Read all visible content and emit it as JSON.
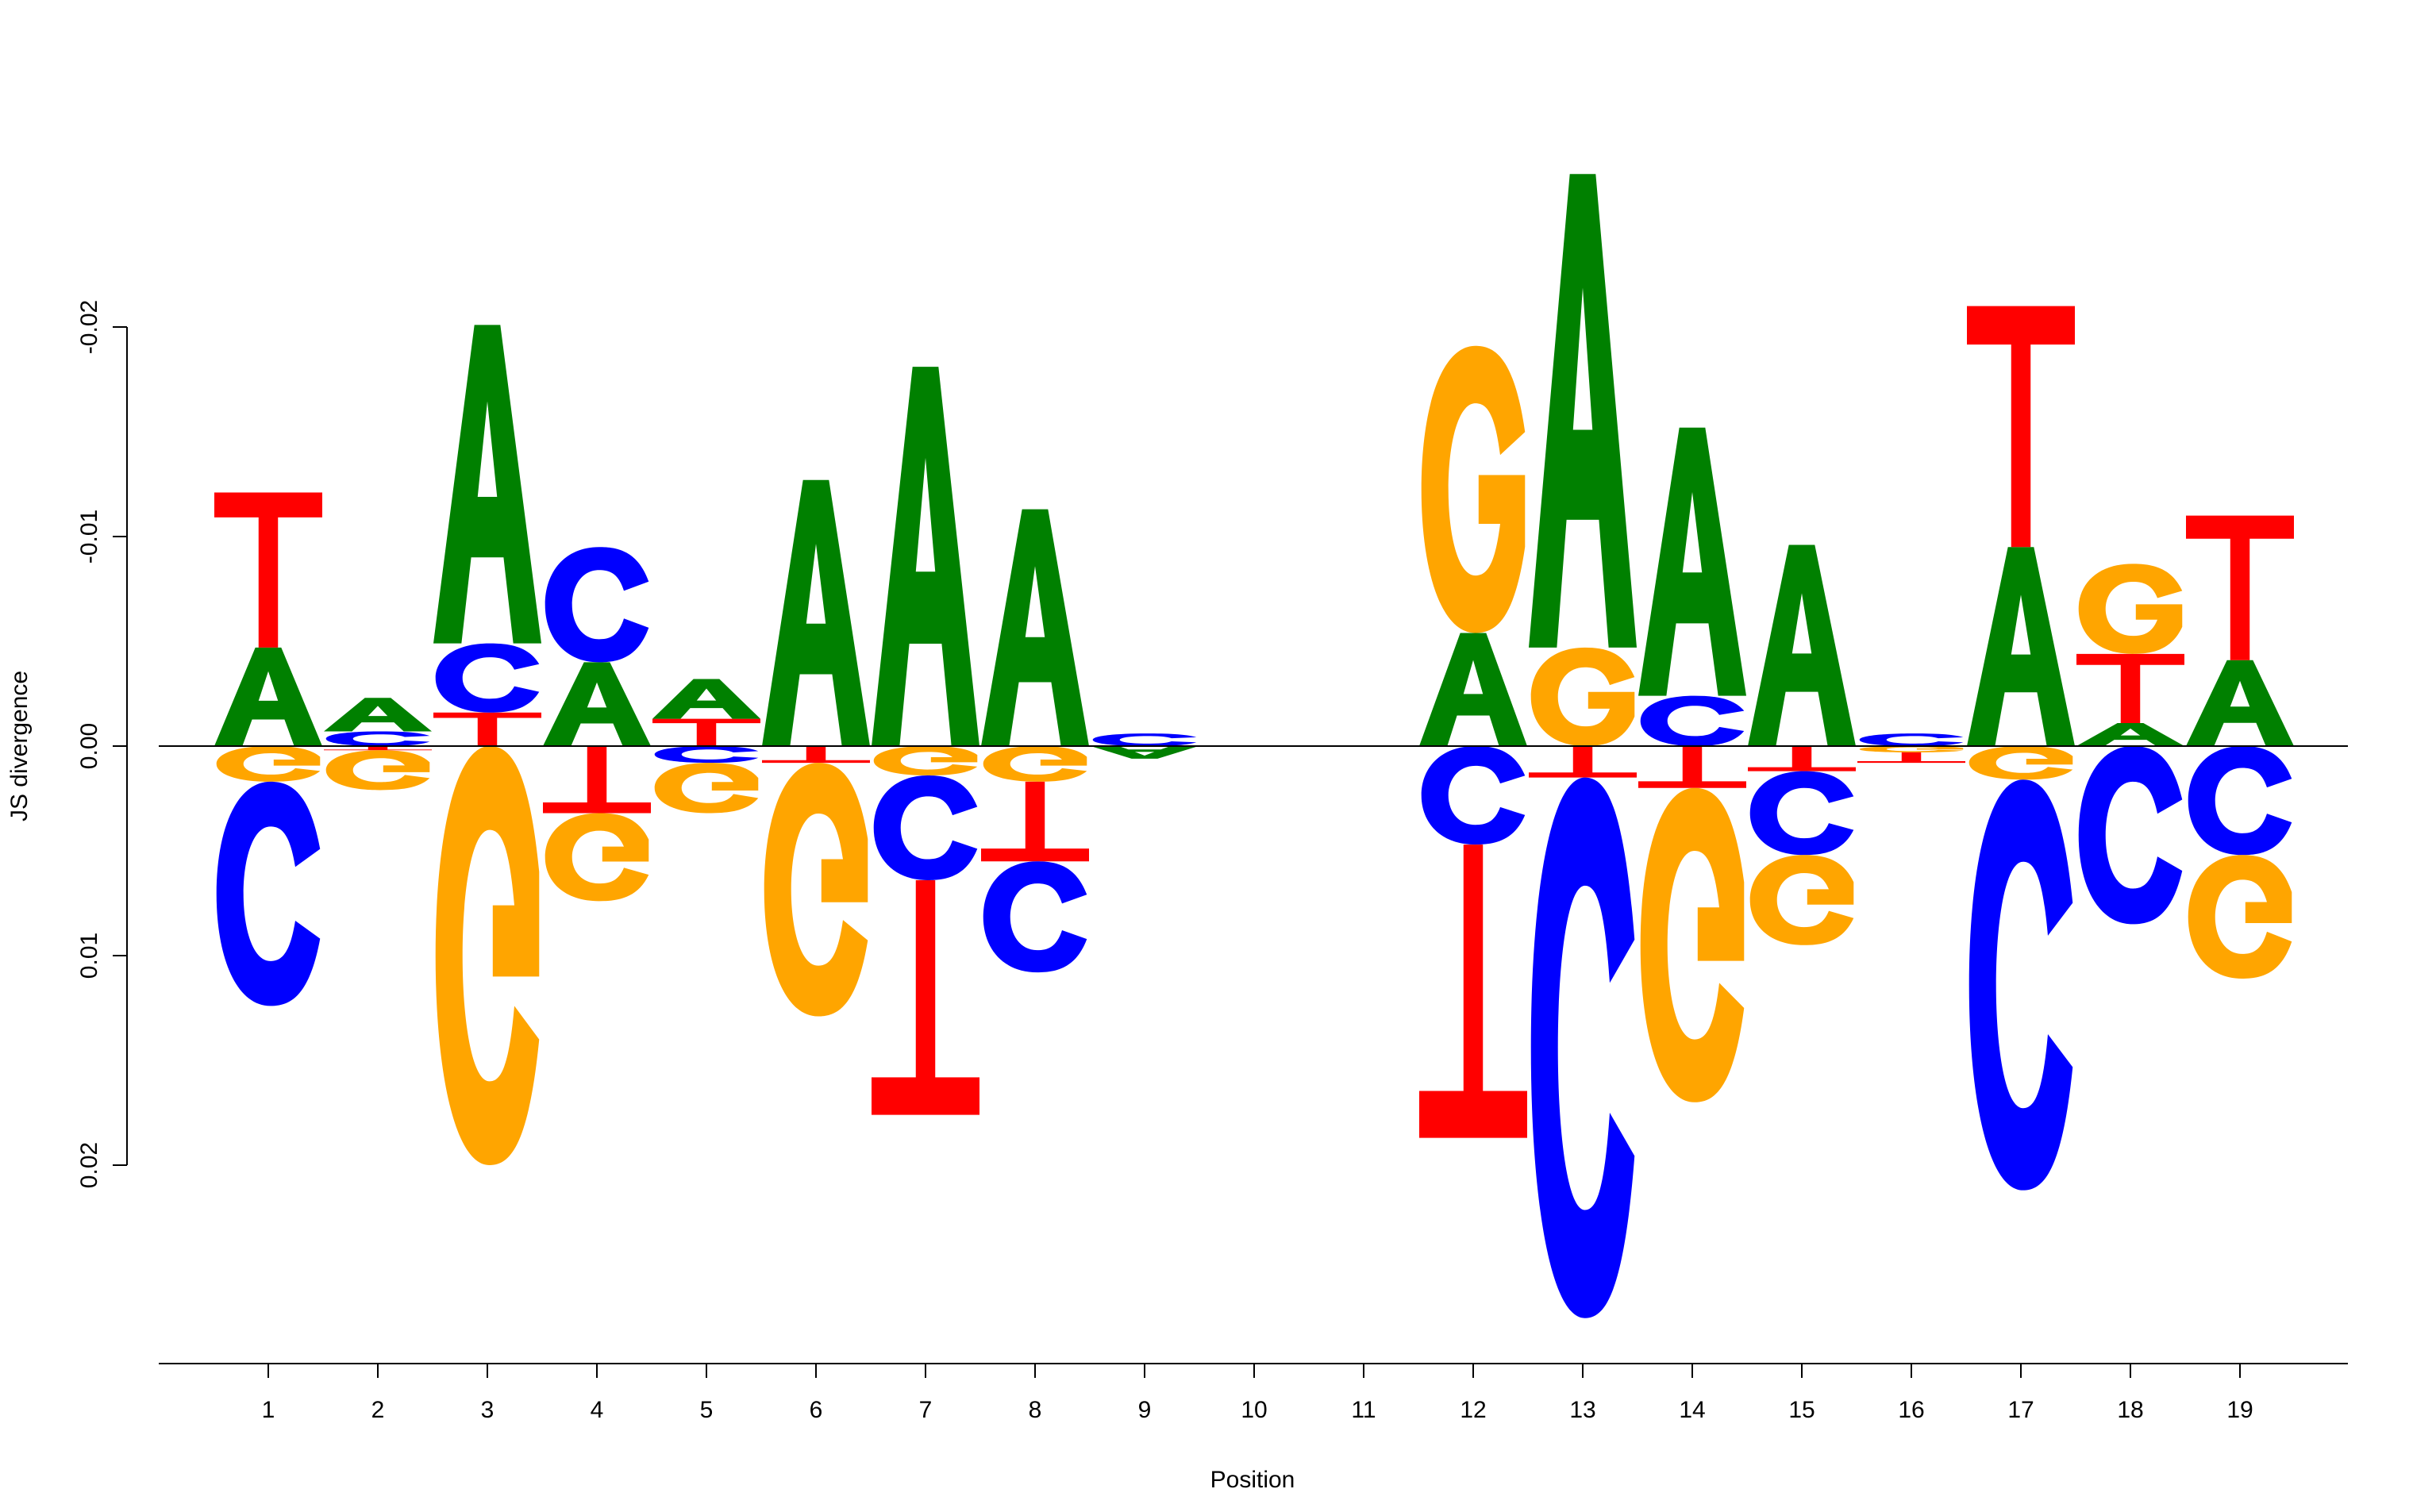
{
  "chart_data": {
    "type": "sequence-logo",
    "xlabel": "Position",
    "ylabel": "JS divergence",
    "ylim": [
      0.03,
      -0.028
    ],
    "y_ticks": [
      {
        "value": -0.02,
        "label": "-0.02"
      },
      {
        "value": -0.01,
        "label": "-0.01"
      },
      {
        "value": 0,
        "label": "0.00"
      },
      {
        "value": 0.01,
        "label": "0.01"
      },
      {
        "value": 0.02,
        "label": "0.02"
      }
    ],
    "x_positions": [
      1,
      2,
      3,
      4,
      5,
      6,
      7,
      8,
      9,
      10,
      11,
      12,
      13,
      14,
      15,
      16,
      17,
      18,
      19
    ],
    "x_tick_labels": [
      "1",
      "2",
      "3",
      "4",
      "5",
      "6",
      "7",
      "8",
      "9",
      "10",
      "11",
      "12",
      "13",
      "14",
      "15",
      "16",
      "17",
      "18",
      "19"
    ],
    "base_colors": {
      "A": "#008000",
      "C": "#0000ff",
      "G": "#ffa500",
      "T": "#ff0000"
    },
    "columns": [
      {
        "position": 1,
        "above": [
          {
            "base": "A",
            "height": 0.0047
          },
          {
            "base": "T",
            "height": 0.0074
          }
        ],
        "below": [
          {
            "base": "G",
            "height": 0.0017
          },
          {
            "base": "C",
            "height": 0.0107
          }
        ]
      },
      {
        "position": 2,
        "above": [
          {
            "base": "C",
            "height": 0.0007
          },
          {
            "base": "A",
            "height": 0.0016
          }
        ],
        "below": [
          {
            "base": "T",
            "height": 0.0002
          },
          {
            "base": "G",
            "height": 0.0019
          }
        ]
      },
      {
        "position": 3,
        "above": [
          {
            "base": "T",
            "height": 0.0016
          },
          {
            "base": "C",
            "height": 0.0033
          },
          {
            "base": "A",
            "height": 0.0152
          }
        ],
        "below": [
          {
            "base": "G",
            "height": 0.02
          }
        ]
      },
      {
        "position": 4,
        "above": [
          {
            "base": "A",
            "height": 0.004
          },
          {
            "base": "C",
            "height": 0.0055
          }
        ],
        "below": [
          {
            "base": "T",
            "height": 0.0032
          },
          {
            "base": "G",
            "height": 0.0042
          }
        ]
      },
      {
        "position": 5,
        "above": [
          {
            "base": "T",
            "height": 0.0013
          },
          {
            "base": "A",
            "height": 0.0019
          }
        ],
        "below": [
          {
            "base": "C",
            "height": 0.0008
          },
          {
            "base": "G",
            "height": 0.0024
          }
        ]
      },
      {
        "position": 6,
        "above": [
          {
            "base": "A",
            "height": 0.0127
          }
        ],
        "below": [
          {
            "base": "T",
            "height": 0.0008
          },
          {
            "base": "G",
            "height": 0.0121
          }
        ]
      },
      {
        "position": 7,
        "above": [
          {
            "base": "A",
            "height": 0.0181
          }
        ],
        "below": [
          {
            "base": "G",
            "height": 0.0014
          },
          {
            "base": "C",
            "height": 0.005
          },
          {
            "base": "T",
            "height": 0.0112
          }
        ]
      },
      {
        "position": 8,
        "above": [
          {
            "base": "A",
            "height": 0.0113
          }
        ],
        "below": [
          {
            "base": "G",
            "height": 0.0017
          },
          {
            "base": "T",
            "height": 0.0038
          },
          {
            "base": "C",
            "height": 0.0053
          }
        ]
      },
      {
        "position": 9,
        "above": [
          {
            "base": "C",
            "height": 0.0006
          }
        ],
        "below": [
          {
            "base": "A",
            "height": 0.0006
          }
        ]
      },
      {
        "position": 10,
        "above": [],
        "below": []
      },
      {
        "position": 11,
        "above": [],
        "below": []
      },
      {
        "position": 12,
        "above": [
          {
            "base": "A",
            "height": 0.0054
          },
          {
            "base": "G",
            "height": 0.0137
          }
        ],
        "below": [
          {
            "base": "C",
            "height": 0.0047
          },
          {
            "base": "T",
            "height": 0.014
          }
        ]
      },
      {
        "position": 13,
        "above": [
          {
            "base": "G",
            "height": 0.0047
          },
          {
            "base": "A",
            "height": 0.0226
          }
        ],
        "below": [
          {
            "base": "T",
            "height": 0.0015
          },
          {
            "base": "C",
            "height": 0.0258
          }
        ]
      },
      {
        "position": 14,
        "above": [
          {
            "base": "C",
            "height": 0.0024
          },
          {
            "base": "A",
            "height": 0.0128
          }
        ],
        "below": [
          {
            "base": "T",
            "height": 0.002
          },
          {
            "base": "G",
            "height": 0.015
          }
        ]
      },
      {
        "position": 15,
        "above": [
          {
            "base": "A",
            "height": 0.0096
          }
        ],
        "below": [
          {
            "base": "T",
            "height": 0.0012
          },
          {
            "base": "C",
            "height": 0.004
          },
          {
            "base": "G",
            "height": 0.0043
          }
        ]
      },
      {
        "position": 16,
        "above": [
          {
            "base": "C",
            "height": 0.0006
          }
        ],
        "below": [
          {
            "base": "G",
            "height": 0.0003
          },
          {
            "base": "T",
            "height": 0.0005
          }
        ]
      },
      {
        "position": 17,
        "above": [
          {
            "base": "A",
            "height": 0.0095
          },
          {
            "base": "T",
            "height": 0.0115
          }
        ],
        "below": [
          {
            "base": "G",
            "height": 0.0016
          },
          {
            "base": "C",
            "height": 0.0196
          }
        ]
      },
      {
        "position": 18,
        "above": [
          {
            "base": "A",
            "height": 0.0011
          },
          {
            "base": "T",
            "height": 0.0033
          },
          {
            "base": "G",
            "height": 0.0043
          }
        ],
        "below": [
          {
            "base": "C",
            "height": 0.0085
          }
        ]
      },
      {
        "position": 19,
        "above": [
          {
            "base": "A",
            "height": 0.0041
          },
          {
            "base": "T",
            "height": 0.0069
          }
        ],
        "below": [
          {
            "base": "C",
            "height": 0.0052
          },
          {
            "base": "G",
            "height": 0.0059
          }
        ]
      }
    ]
  }
}
